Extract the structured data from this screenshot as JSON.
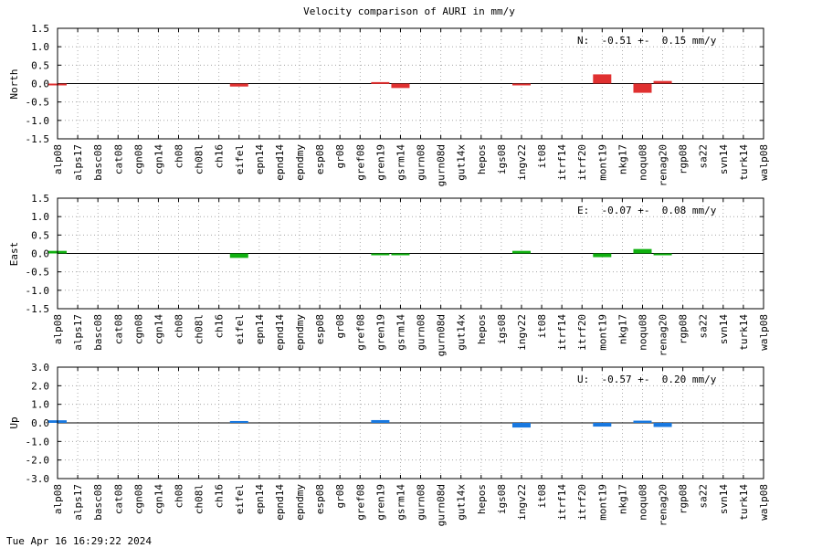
{
  "title": "Velocity comparison of AURI in mm/y",
  "timestamp": "Tue Apr 16 16:29:22 2024",
  "chart_data": [
    {
      "type": "bar",
      "ylabel": "North",
      "ylim": [
        -1.5,
        1.5
      ],
      "yticks": [
        "1.5",
        "1.0",
        "0.5",
        "0.0",
        "-0.5",
        "-1.0",
        "-1.5"
      ],
      "grid": true,
      "annotation": "N:  -0.51 +-  0.15 mm/y",
      "color": "#e03030",
      "categories": [
        "alp08",
        "alps17",
        "basc08",
        "cat08",
        "cgn08",
        "cgn14",
        "ch08",
        "ch08l",
        "ch16",
        "eifel",
        "epn14",
        "epnd14",
        "epndmy",
        "esp08",
        "gr08",
        "gref08",
        "gren19",
        "gsrm14",
        "gurn08",
        "gurn08d",
        "gut14x",
        "hepos",
        "igs08",
        "ingv22",
        "it08",
        "itrf14",
        "itrf20",
        "mont19",
        "nkg17",
        "noqu08",
        "renag20",
        "rgp08",
        "sa22",
        "svn14",
        "turk14",
        "walp08"
      ],
      "values": [
        -0.03,
        0,
        0,
        0,
        0,
        0,
        0,
        0,
        0,
        -0.08,
        0,
        0,
        0,
        0,
        0,
        0,
        0.04,
        -0.12,
        0,
        0,
        0,
        0,
        0,
        -0.02,
        0,
        0,
        0,
        0.25,
        0,
        -0.25,
        0.07,
        0,
        0,
        0,
        0,
        0
      ]
    },
    {
      "type": "bar",
      "ylabel": "East",
      "ylim": [
        -1.5,
        1.5
      ],
      "yticks": [
        "1.5",
        "1.0",
        "0.5",
        "0.0",
        "-0.5",
        "-1.0",
        "-1.5"
      ],
      "grid": true,
      "annotation": "E:  -0.07 +-  0.08 mm/y",
      "color": "#10b010",
      "categories": [
        "alp08",
        "alps17",
        "basc08",
        "cat08",
        "cgn08",
        "cgn14",
        "ch08",
        "ch08l",
        "ch16",
        "eifel",
        "epn14",
        "epnd14",
        "epndmy",
        "esp08",
        "gr08",
        "gref08",
        "gren19",
        "gsrm14",
        "gurn08",
        "gurn08d",
        "gut14x",
        "hepos",
        "igs08",
        "ingv22",
        "it08",
        "itrf14",
        "itrf20",
        "mont19",
        "nkg17",
        "noqu08",
        "renag20",
        "rgp08",
        "sa22",
        "svn14",
        "turk14",
        "walp08"
      ],
      "values": [
        0.07,
        0,
        0,
        0,
        0,
        0,
        0,
        0,
        0,
        -0.12,
        0,
        0,
        0,
        0,
        0,
        0,
        -0.02,
        -0.02,
        0,
        0,
        0,
        0,
        0,
        0.07,
        0,
        0,
        0,
        -0.1,
        0,
        0.12,
        -0.02,
        0,
        0,
        0,
        0,
        0
      ]
    },
    {
      "type": "bar",
      "ylabel": "Up",
      "ylim": [
        -3.0,
        3.0
      ],
      "yticks": [
        "3.0",
        "2.0",
        "1.0",
        "0.0",
        "-1.0",
        "-2.0",
        "-3.0"
      ],
      "grid": true,
      "annotation": "U:  -0.57 +-  0.20 mm/y",
      "color": "#1878e0",
      "categories": [
        "alp08",
        "alps17",
        "basc08",
        "cat08",
        "cgn08",
        "cgn14",
        "ch08",
        "ch08l",
        "ch16",
        "eifel",
        "epn14",
        "epnd14",
        "epndmy",
        "esp08",
        "gr08",
        "gref08",
        "gren19",
        "gsrm14",
        "gurn08",
        "gurn08d",
        "gut14x",
        "hepos",
        "igs08",
        "ingv22",
        "it08",
        "itrf14",
        "itrf20",
        "mont19",
        "nkg17",
        "noqu08",
        "renag20",
        "rgp08",
        "sa22",
        "svn14",
        "turk14",
        "walp08"
      ],
      "values": [
        0.14,
        0,
        0,
        0,
        0,
        0,
        0,
        0,
        0,
        0.1,
        0,
        0,
        0,
        0,
        0,
        0,
        0.15,
        0,
        0,
        0,
        0,
        0,
        0,
        -0.25,
        0,
        0,
        0,
        -0.2,
        0,
        0.12,
        -0.22,
        0,
        0,
        0,
        0,
        0
      ]
    }
  ]
}
